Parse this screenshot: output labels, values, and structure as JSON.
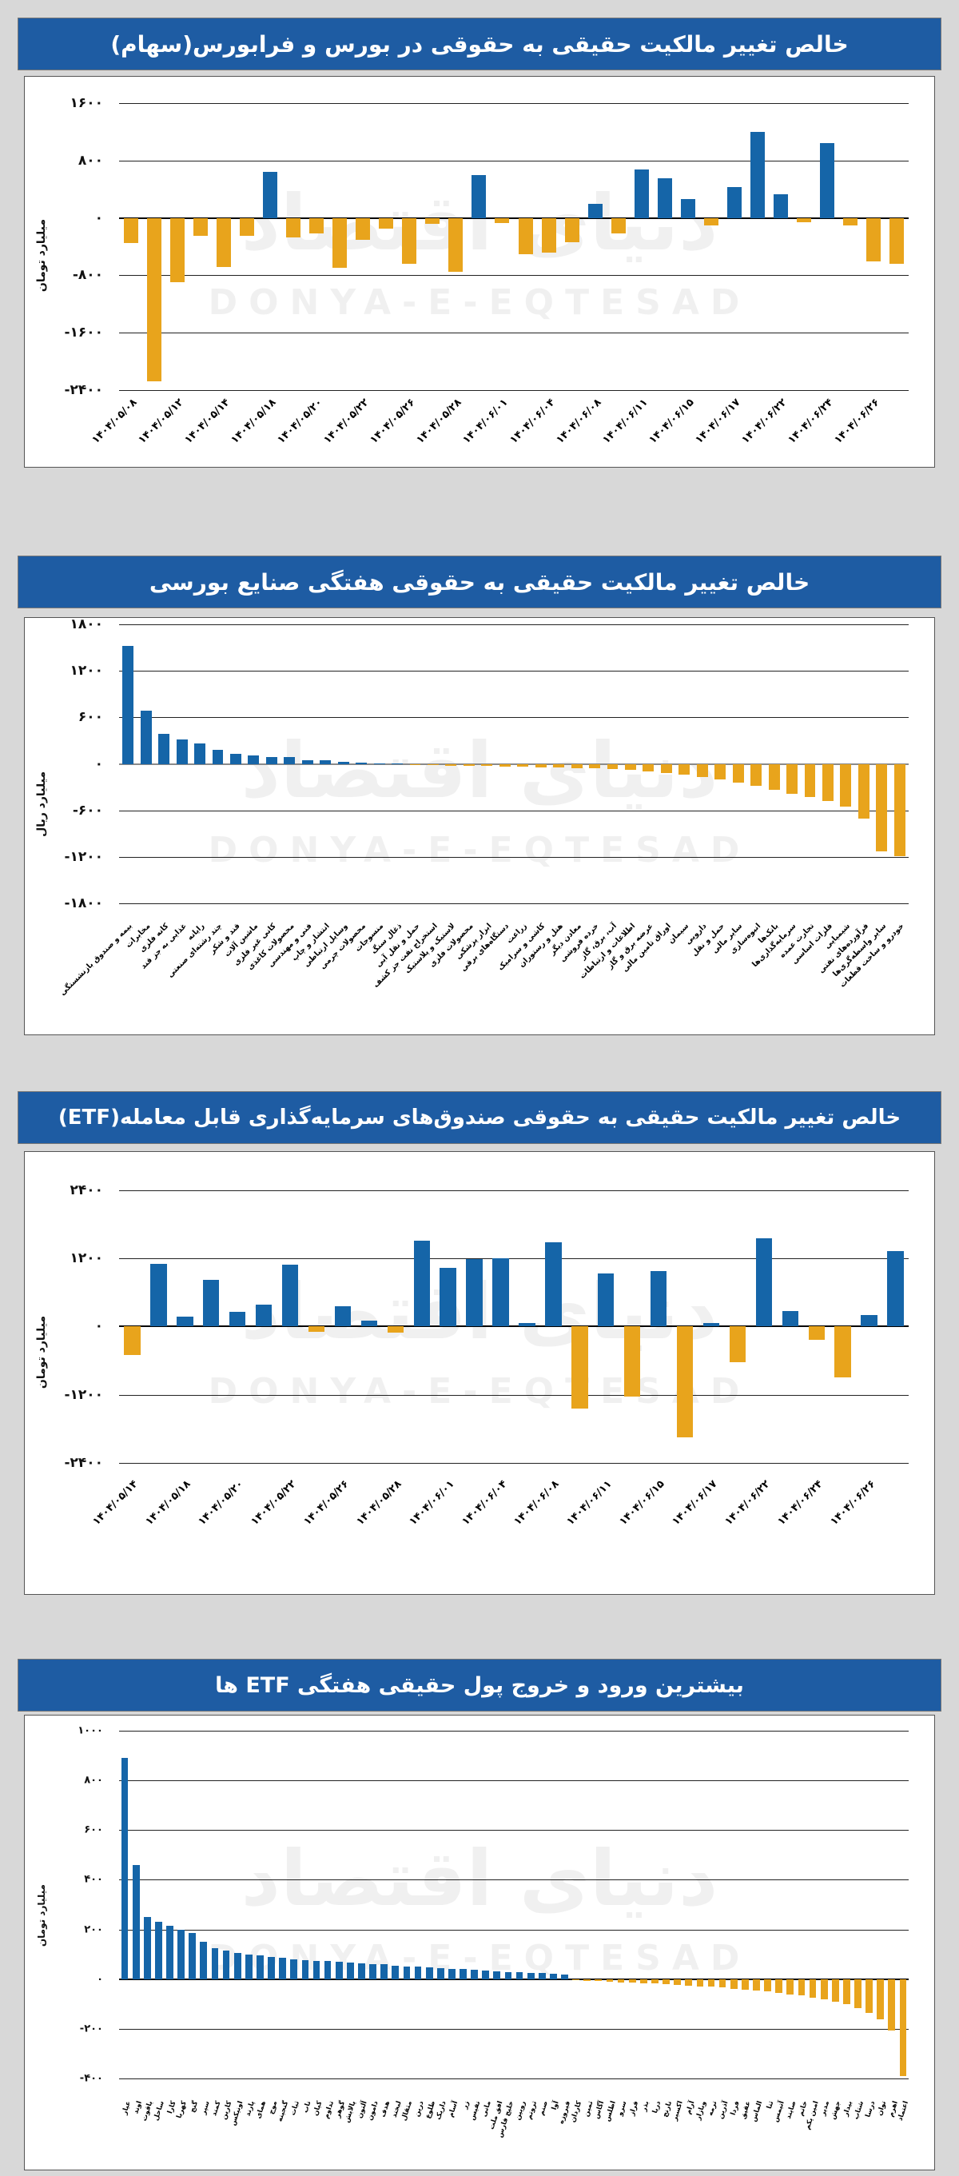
{
  "page": {
    "watermark_fa": "دنیای اقتصاد",
    "watermark_en": "DONYA-E-EQTESAD"
  },
  "colors": {
    "positive": "#1565a8",
    "negative": "#e8a41c",
    "title_bg": "#1e5ca3",
    "title_fg": "#ffffff"
  },
  "chart_data": [
    {
      "type": "bar",
      "title": "خالص تغییر مالکیت حقیقی به حقوقی در بورس و فرابورس(سهام)",
      "unit": "میلیارد تومان",
      "ymax": 1970,
      "ymin": -2400,
      "grid": true,
      "legend": "none",
      "zero_line": "#000000",
      "rotation": -45,
      "label_every": 2,
      "ticks": [
        {
          "label": "۱۶۰۰",
          "value": 1600
        },
        {
          "label": "۸۰۰",
          "value": 800
        },
        {
          "label": "۰",
          "value": 0
        },
        {
          "label": "-۸۰۰",
          "value": -800
        },
        {
          "label": "-۱۶۰۰",
          "value": -1600
        },
        {
          "label": "-۲۴۰۰",
          "value": -2400
        }
      ],
      "categories": [
        "۱۴۰۴/۰۵/۰۸",
        "۱۴۰۴/۰۵/۱۲",
        "۱۴۰۴/۰۵/۱۴",
        "۱۴۰۴/۰۵/۱۸",
        "۱۴۰۴/۰۵/۲۰",
        "۱۴۰۴/۰۵/۲۲",
        "۱۴۰۴/۰۵/۲۶",
        "۱۴۰۴/۰۵/۲۸",
        "۱۴۰۴/۰۶/۰۱",
        "۱۴۰۴/۰۶/۰۴",
        "۱۴۰۴/۰۶/۰۸",
        "۱۴۰۴/۰۶/۱۱",
        "۱۴۰۴/۰۶/۱۵",
        "۱۴۰۴/۰۶/۱۷",
        "۱۴۰۴/۰۶/۲۲",
        "۱۴۰۴/۰۶/۲۴",
        "۱۴۰۴/۰۶/۲۶"
      ],
      "values": [
        -350,
        -2280,
        -900,
        -250,
        -680,
        -250,
        640,
        -270,
        -210,
        -700,
        -300,
        -145,
        -640,
        -80,
        -750,
        600,
        -70,
        -500,
        -480,
        -340,
        200,
        -220,
        680,
        550,
        260,
        -100,
        430,
        1200,
        335,
        -60,
        1050,
        -100,
        -600,
        -640
      ]
    },
    {
      "type": "bar",
      "title": "خالص تغییر مالکیت حقیقی به حقوقی هفتگی صنایع بورسی",
      "unit": "میلیارد ریال",
      "ymax": 1800,
      "ymin": -1950,
      "grid": true,
      "legend": "none",
      "zero_line": "#8a8a8a",
      "rotation": -45,
      "label_every": 1,
      "ticks": [
        {
          "label": "۱۸۰۰",
          "value": 1800
        },
        {
          "label": "۱۲۰۰",
          "value": 1200
        },
        {
          "label": "۶۰۰",
          "value": 600
        },
        {
          "label": "۰",
          "value": 0
        },
        {
          "label": "-۶۰۰",
          "value": -600
        },
        {
          "label": "-۱۲۰۰",
          "value": -1200
        },
        {
          "label": "-۱۸۰۰",
          "value": -1800
        }
      ],
      "categories": [
        "بیمه و صندوق بازنشستگی",
        "مخابرات",
        "کانه فلزی",
        "غذایی به جز قند",
        "رایانه",
        "چند رشته‌ای صنعتی",
        "قند و شکر",
        "ماشین آلات",
        "کانی غیر فلزی",
        "محصولات کاغذی",
        "فنی و مهندسی",
        "انتشار و چاپ",
        "وسایل ارتباطی",
        "محصولات چرمی",
        "منسوجات",
        "ذغال سنگ",
        "حمل و نقل آبی",
        "استخراج نفت جز کشف",
        "لاستیک و پلاستیک",
        "محصولات فلزی",
        "ابزار پزشکی",
        "دستگاه‌های برقی",
        "زراعت",
        "کاشی و سرامیک",
        "هتل و رستوران",
        "معادن دیگر",
        "خرده فروشی",
        "آب، برق، گاز",
        "اطلاعات و ارتباطات",
        "عرضه برق و گاز",
        "اوراق تامین مالی",
        "سیمان",
        "دارویی",
        "حمل و نقل",
        "سایر مالی",
        "انبوه‌سازی",
        "بانک‌ها",
        "سرمایه‌گذاری‌ها",
        "تجارت عمده",
        "فلزات اساسی",
        "شیمیایی",
        "فرآورده‌های نفتی",
        "سایر واسطه‌گری‌ها",
        "خودرو و ساخت قطعات"
      ],
      "values": [
        1520,
        690,
        385,
        320,
        270,
        185,
        135,
        110,
        92,
        85,
        52,
        45,
        30,
        18,
        10,
        5,
        -8,
        -15,
        -20,
        -25,
        -28,
        -32,
        -36,
        -40,
        -45,
        -50,
        -58,
        -68,
        -80,
        -95,
        -115,
        -135,
        -165,
        -195,
        -235,
        -285,
        -335,
        -380,
        -425,
        -475,
        -545,
        -705,
        -1130,
        -1185
      ]
    },
    {
      "type": "bar",
      "title": "خالص تغییر مالکیت حقیقی به حقوقی صندوق‌های سرمایه‌گذاری قابل معامله(ETF)",
      "unit": "میلیارد تومان",
      "ymax": 3080,
      "ymin": -2560,
      "grid": true,
      "legend": "none",
      "zero_line": "#000000",
      "rotation": -45,
      "label_every": 2,
      "ticks": [
        {
          "label": "۲۴۰۰",
          "value": 2400
        },
        {
          "label": "۱۲۰۰",
          "value": 1200
        },
        {
          "label": "۰",
          "value": 0
        },
        {
          "label": "-۱۲۰۰",
          "value": -1200
        },
        {
          "label": "-۲۴۰۰",
          "value": -2400
        }
      ],
      "categories": [
        "۱۴۰۴/۰۵/۱۴",
        "۱۴۰۴/۰۵/۱۸",
        "۱۴۰۴/۰۵/۲۰",
        "۱۴۰۴/۰۵/۲۲",
        "۱۴۰۴/۰۵/۲۶",
        "۱۴۰۴/۰۵/۲۸",
        "۱۴۰۴/۰۶/۰۱",
        "۱۴۰۴/۰۶/۰۴",
        "۱۴۰۴/۰۶/۰۸",
        "۱۴۰۴/۰۶/۱۱",
        "۱۴۰۴/۰۶/۱۵",
        "۱۴۰۴/۰۶/۱۷",
        "۱۴۰۴/۰۶/۲۲",
        "۱۴۰۴/۰۶/۲۴",
        "۱۴۰۴/۰۶/۲۶"
      ],
      "values": [
        -500,
        1100,
        180,
        820,
        260,
        390,
        1090,
        -90,
        360,
        100,
        -110,
        1510,
        1040,
        1190,
        1200,
        60,
        1480,
        -1450,
        930,
        -1230,
        980,
        -1950,
        60,
        -630,
        1560,
        280,
        -240,
        -900,
        200,
        1330
      ]
    },
    {
      "type": "bar",
      "title": "بیشترین ورود و خروج پول حقیقی هفتگی ETF ها",
      "unit": "میلیارد تومان",
      "ymax": 1060,
      "ymin": -460,
      "grid": true,
      "legend": "none",
      "zero_line": "#000000",
      "rotation": -72,
      "label_every": 1,
      "ticks": [
        {
          "label": "۱۰۰۰",
          "value": 1000
        },
        {
          "label": "۸۰۰",
          "value": 800
        },
        {
          "label": "۶۰۰",
          "value": 600
        },
        {
          "label": "۴۰۰",
          "value": 400
        },
        {
          "label": "۲۰۰",
          "value": 200
        },
        {
          "label": "۰",
          "value": 0
        },
        {
          "label": "-۲۰۰",
          "value": -200
        },
        {
          "label": "-۴۰۰",
          "value": -400
        }
      ],
      "categories": [
        "عیار",
        "اوند",
        "یاقوت",
        "ساحل",
        "کارا",
        "کهربا",
        "گنج",
        "سپر",
        "کمند",
        "کارین",
        "اونیکس",
        "پارند",
        "همای",
        "موج",
        "گنجینه",
        "ثبات",
        "ناب",
        "کیان",
        "تداوم",
        "گوهر",
        "پالایش",
        "آلتون",
        "دامون",
        "هدف",
        "لبخند",
        "مثقال",
        "درین",
        "طلوع",
        "داریک",
        "آسام",
        "زر",
        "نفیس",
        "مانی",
        "افق ملت",
        "خلیج فارس",
        "رویین",
        "ثروتم",
        "صنم",
        "آوا",
        "فیروزه",
        "کاردان",
        "ثمین",
        "آگاس",
        "اطلس",
        "سرو",
        "فراز",
        "بذر",
        "دریا",
        "نارنج",
        "اکسیر",
        "آرام",
        "وبازار",
        "ترمه",
        "آذرین",
        "فردا",
        "عقیق",
        "الماس",
        "ثنا",
        "آتیمس",
        "صایند",
        "خاتم",
        "امین یکم",
        "مدیر",
        "جهش",
        "بیدار",
        "شتاب",
        "درسا",
        "توان",
        "اهرم",
        "اعتماد"
      ],
      "values": [
        890,
        460,
        250,
        230,
        215,
        200,
        185,
        150,
        125,
        115,
        105,
        100,
        95,
        90,
        85,
        80,
        78,
        75,
        72,
        70,
        68,
        65,
        62,
        60,
        55,
        52,
        50,
        48,
        45,
        42,
        40,
        38,
        35,
        32,
        30,
        28,
        26,
        24,
        22,
        20,
        -4,
        -6,
        -8,
        -10,
        -12,
        -14,
        -16,
        -18,
        -20,
        -22,
        -25,
        -28,
        -31,
        -34,
        -38,
        -42,
        -46,
        -50,
        -55,
        -60,
        -66,
        -73,
        -81,
        -90,
        -100,
        -115,
        -135,
        -160,
        -205,
        -390
      ]
    }
  ]
}
